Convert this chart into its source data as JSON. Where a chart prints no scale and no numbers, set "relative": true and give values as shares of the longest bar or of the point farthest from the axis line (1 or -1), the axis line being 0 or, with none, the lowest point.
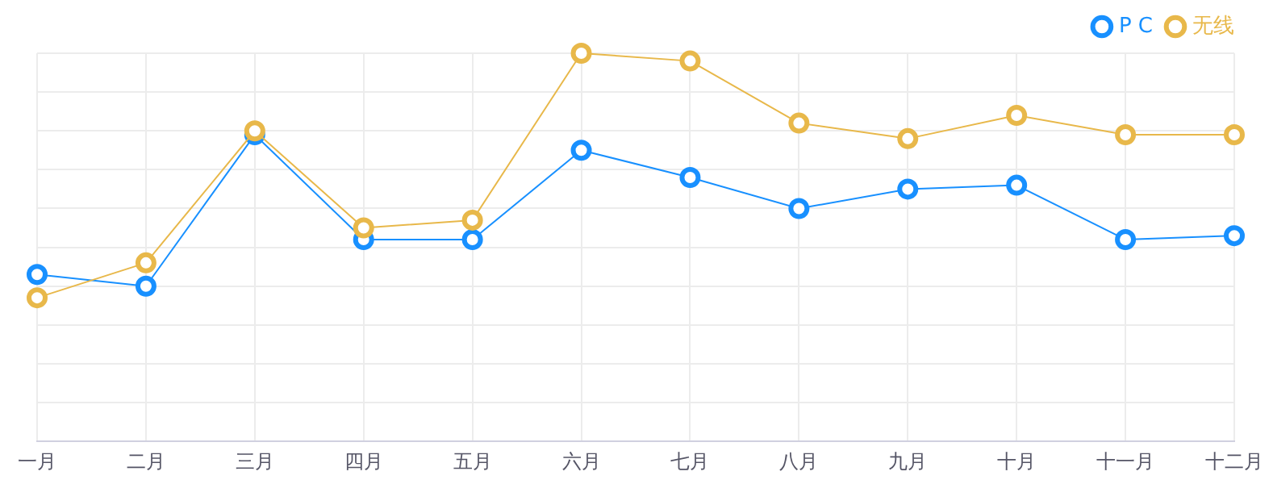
{
  "chart_data": {
    "type": "line",
    "relative": true,
    "categories": [
      "一月",
      "二月",
      "三月",
      "四月",
      "五月",
      "六月",
      "七月",
      "八月",
      "九月",
      "十月",
      "十一月",
      "十二月"
    ],
    "series": [
      {
        "name": "P C",
        "color": "#1890ff",
        "values": [
          0.43,
          0.4,
          0.79,
          0.52,
          0.52,
          0.75,
          0.68,
          0.6,
          0.65,
          0.66,
          0.52,
          0.53
        ]
      },
      {
        "name": "无线",
        "color": "#e8b84a",
        "values": [
          0.37,
          0.46,
          0.8,
          0.55,
          0.57,
          1,
          0.98,
          0.82,
          0.78,
          0.84,
          0.79,
          0.79
        ]
      }
    ],
    "marker": "circle",
    "line_style": "solid",
    "grid": true,
    "legend": "top right"
  }
}
